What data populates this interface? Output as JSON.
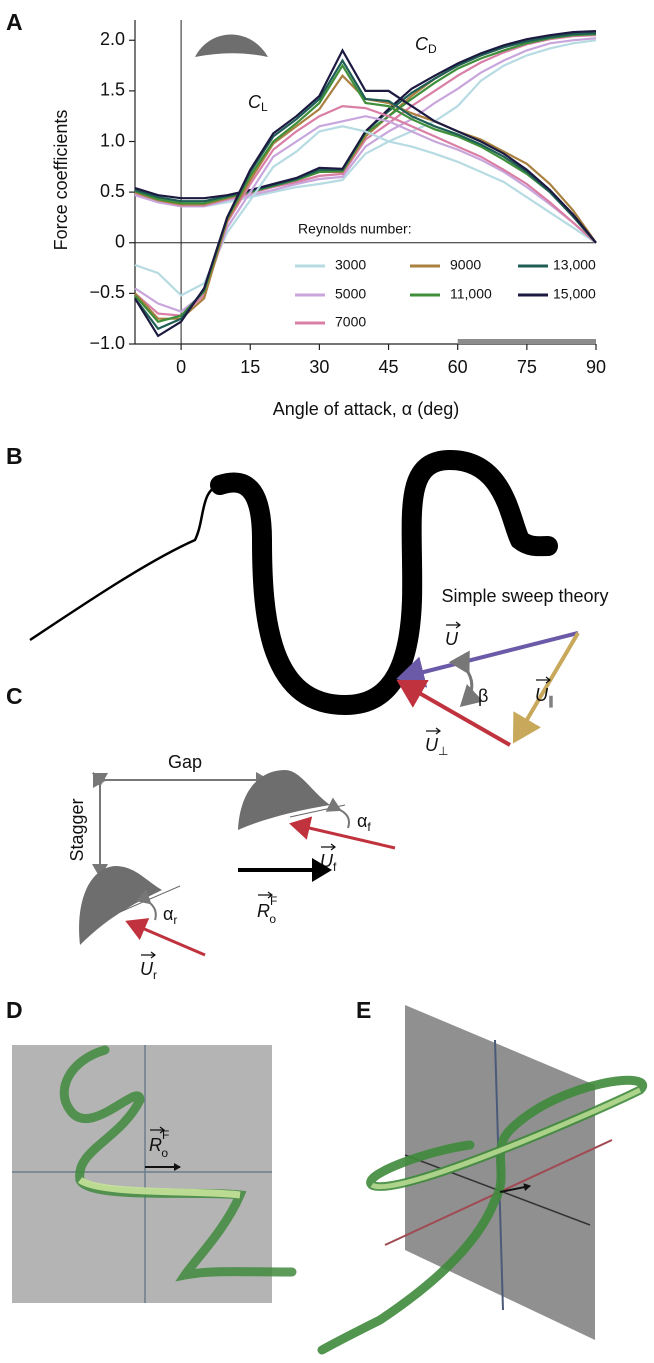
{
  "chart_data": {
    "type": "line",
    "ylabel": "Force coefficients",
    "xlabel": "Angle of attack, α (deg)",
    "legend_title": "Reynolds number:",
    "annotations": [
      {
        "text": "C",
        "sub": "L"
      },
      {
        "text": "C",
        "sub": "D"
      }
    ],
    "x": [
      -10,
      -5,
      0,
      5,
      10,
      15,
      20,
      25,
      30,
      35,
      40,
      45,
      50,
      55,
      60,
      65,
      70,
      75,
      80,
      85,
      90
    ],
    "xlim": [
      -10,
      90
    ],
    "xticks": [
      0,
      15,
      30,
      45,
      60,
      75,
      90
    ],
    "ylim": [
      -1,
      2.2
    ],
    "yticks": [
      {
        "value": -1,
        "label": "−1.0"
      },
      {
        "value": -0.5,
        "label": "−0.5"
      },
      0,
      0.5,
      {
        "value": 1,
        "label": "1.0"
      },
      1.5,
      {
        "value": 2,
        "label": "2.0"
      }
    ],
    "shaded_xrange": [
      60,
      90
    ],
    "series": [
      {
        "name": "3000",
        "color": "#b7dbe3",
        "lift": [
          -0.22,
          -0.3,
          -0.52,
          -0.4,
          0.1,
          0.42,
          0.75,
          0.9,
          1.1,
          1.15,
          1.1,
          1.0,
          0.95,
          0.88,
          0.8,
          0.7,
          0.6,
          0.45,
          0.3,
          0.15,
          0.0
        ],
        "drag": [
          0.48,
          0.4,
          0.36,
          0.36,
          0.4,
          0.45,
          0.5,
          0.55,
          0.58,
          0.62,
          0.88,
          1.0,
          1.1,
          1.2,
          1.35,
          1.6,
          1.75,
          1.85,
          1.92,
          1.97,
          2.0
        ]
      },
      {
        "name": "5000",
        "color": "#c8a6dc",
        "lift": [
          -0.45,
          -0.6,
          -0.68,
          -0.5,
          0.15,
          0.5,
          0.85,
          1.0,
          1.15,
          1.2,
          1.25,
          1.2,
          1.1,
          1.0,
          0.92,
          0.82,
          0.7,
          0.55,
          0.38,
          0.2,
          0.0
        ],
        "drag": [
          0.47,
          0.4,
          0.36,
          0.36,
          0.42,
          0.47,
          0.52,
          0.58,
          0.63,
          0.65,
          0.95,
          1.1,
          1.22,
          1.38,
          1.52,
          1.68,
          1.8,
          1.9,
          1.97,
          2.0,
          2.02
        ]
      },
      {
        "name": "7000",
        "color": "#d97fa6",
        "lift": [
          -0.5,
          -0.7,
          -0.72,
          -0.52,
          0.2,
          0.58,
          0.92,
          1.1,
          1.25,
          1.35,
          1.33,
          1.25,
          1.15,
          1.05,
          0.95,
          0.85,
          0.72,
          0.58,
          0.4,
          0.2,
          0.0
        ],
        "drag": [
          0.49,
          0.42,
          0.37,
          0.37,
          0.43,
          0.49,
          0.55,
          0.6,
          0.66,
          0.68,
          1.02,
          1.18,
          1.35,
          1.5,
          1.65,
          1.78,
          1.88,
          1.96,
          2.01,
          2.04,
          2.05
        ]
      },
      {
        "name": "9000",
        "color": "#a8803f",
        "lift": [
          -0.5,
          -0.75,
          -0.75,
          -0.55,
          0.22,
          0.62,
          0.98,
          1.15,
          1.32,
          1.65,
          1.42,
          1.38,
          1.28,
          1.2,
          1.1,
          1.02,
          0.9,
          0.78,
          0.58,
          0.32,
          0.0
        ],
        "drag": [
          0.5,
          0.42,
          0.38,
          0.38,
          0.44,
          0.5,
          0.56,
          0.62,
          0.7,
          0.7,
          1.05,
          1.25,
          1.45,
          1.62,
          1.75,
          1.85,
          1.94,
          2.0,
          2.04,
          2.06,
          2.07
        ]
      },
      {
        "name": "11,000",
        "color": "#3f8f3a",
        "lift": [
          -0.52,
          -0.78,
          -0.72,
          -0.48,
          0.24,
          0.66,
          1.0,
          1.18,
          1.38,
          1.75,
          1.38,
          1.35,
          1.22,
          1.12,
          1.05,
          0.95,
          0.82,
          0.68,
          0.5,
          0.26,
          0.0
        ],
        "drag": [
          0.51,
          0.43,
          0.39,
          0.39,
          0.45,
          0.5,
          0.56,
          0.62,
          0.7,
          0.71,
          1.08,
          1.25,
          1.42,
          1.58,
          1.72,
          1.82,
          1.9,
          1.97,
          2.02,
          2.05,
          2.06
        ]
      },
      {
        "name": "13,000",
        "color": "#1f5e55",
        "lift": [
          -0.55,
          -0.85,
          -0.75,
          -0.46,
          0.25,
          0.7,
          1.05,
          1.22,
          1.42,
          1.8,
          1.42,
          1.4,
          1.25,
          1.15,
          1.07,
          0.97,
          0.85,
          0.7,
          0.5,
          0.26,
          0.0
        ],
        "drag": [
          0.52,
          0.45,
          0.41,
          0.41,
          0.46,
          0.51,
          0.57,
          0.63,
          0.72,
          0.72,
          1.1,
          1.3,
          1.48,
          1.62,
          1.75,
          1.85,
          1.93,
          1.99,
          2.03,
          2.06,
          2.07
        ]
      },
      {
        "name": "15,000",
        "color": "#1c1a40",
        "lift": [
          -0.55,
          -0.92,
          -0.78,
          -0.45,
          0.25,
          0.72,
          1.08,
          1.25,
          1.45,
          1.9,
          1.5,
          1.5,
          1.35,
          1.2,
          1.1,
          1.0,
          0.88,
          0.72,
          0.52,
          0.28,
          0.0
        ],
        "drag": [
          0.54,
          0.47,
          0.44,
          0.44,
          0.47,
          0.52,
          0.58,
          0.64,
          0.74,
          0.73,
          1.1,
          1.32,
          1.52,
          1.65,
          1.77,
          1.87,
          1.95,
          2.01,
          2.05,
          2.08,
          2.09
        ]
      }
    ]
  },
  "diagram": {
    "panels": [
      "A",
      "B",
      "C",
      "D",
      "E"
    ],
    "sweep_title": "Simple sweep theory",
    "U": "U",
    "beta": "β",
    "U_parallel": {
      "base": "U",
      "sub": "∥"
    },
    "U_perp": {
      "base": "U",
      "sub": "⊥"
    },
    "gap": "Gap",
    "stagger": "Stagger",
    "alpha_f": {
      "base": "α",
      "sub": "f"
    },
    "U_f": {
      "base": "U",
      "sub": "f"
    },
    "alpha_r": {
      "base": "α",
      "sub": "r"
    },
    "U_r": {
      "base": "U",
      "sub": "r"
    },
    "R": {
      "base": "R",
      "sub": "o",
      "sup": "F"
    }
  }
}
